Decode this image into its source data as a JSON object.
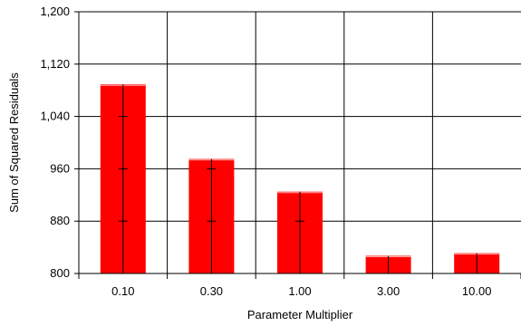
{
  "chart_data": {
    "type": "bar",
    "title": "",
    "xlabel": "Parameter Multiplier",
    "ylabel": "Sum of Squared Residuals",
    "categories": [
      "0.10",
      "0.30",
      "1.00",
      "3.00",
      "10.00"
    ],
    "values": [
      1089,
      975,
      925,
      827,
      831
    ],
    "ylim": [
      800,
      1200
    ],
    "yticks": [
      800,
      880,
      960,
      1040,
      1120,
      1200
    ],
    "ytick_labels": [
      "800",
      "880",
      "960",
      "1,040",
      "1,120",
      "1,200"
    ],
    "grid": true,
    "legend": "none",
    "bar_color": "#ff0000",
    "axis_color": "#000000"
  }
}
